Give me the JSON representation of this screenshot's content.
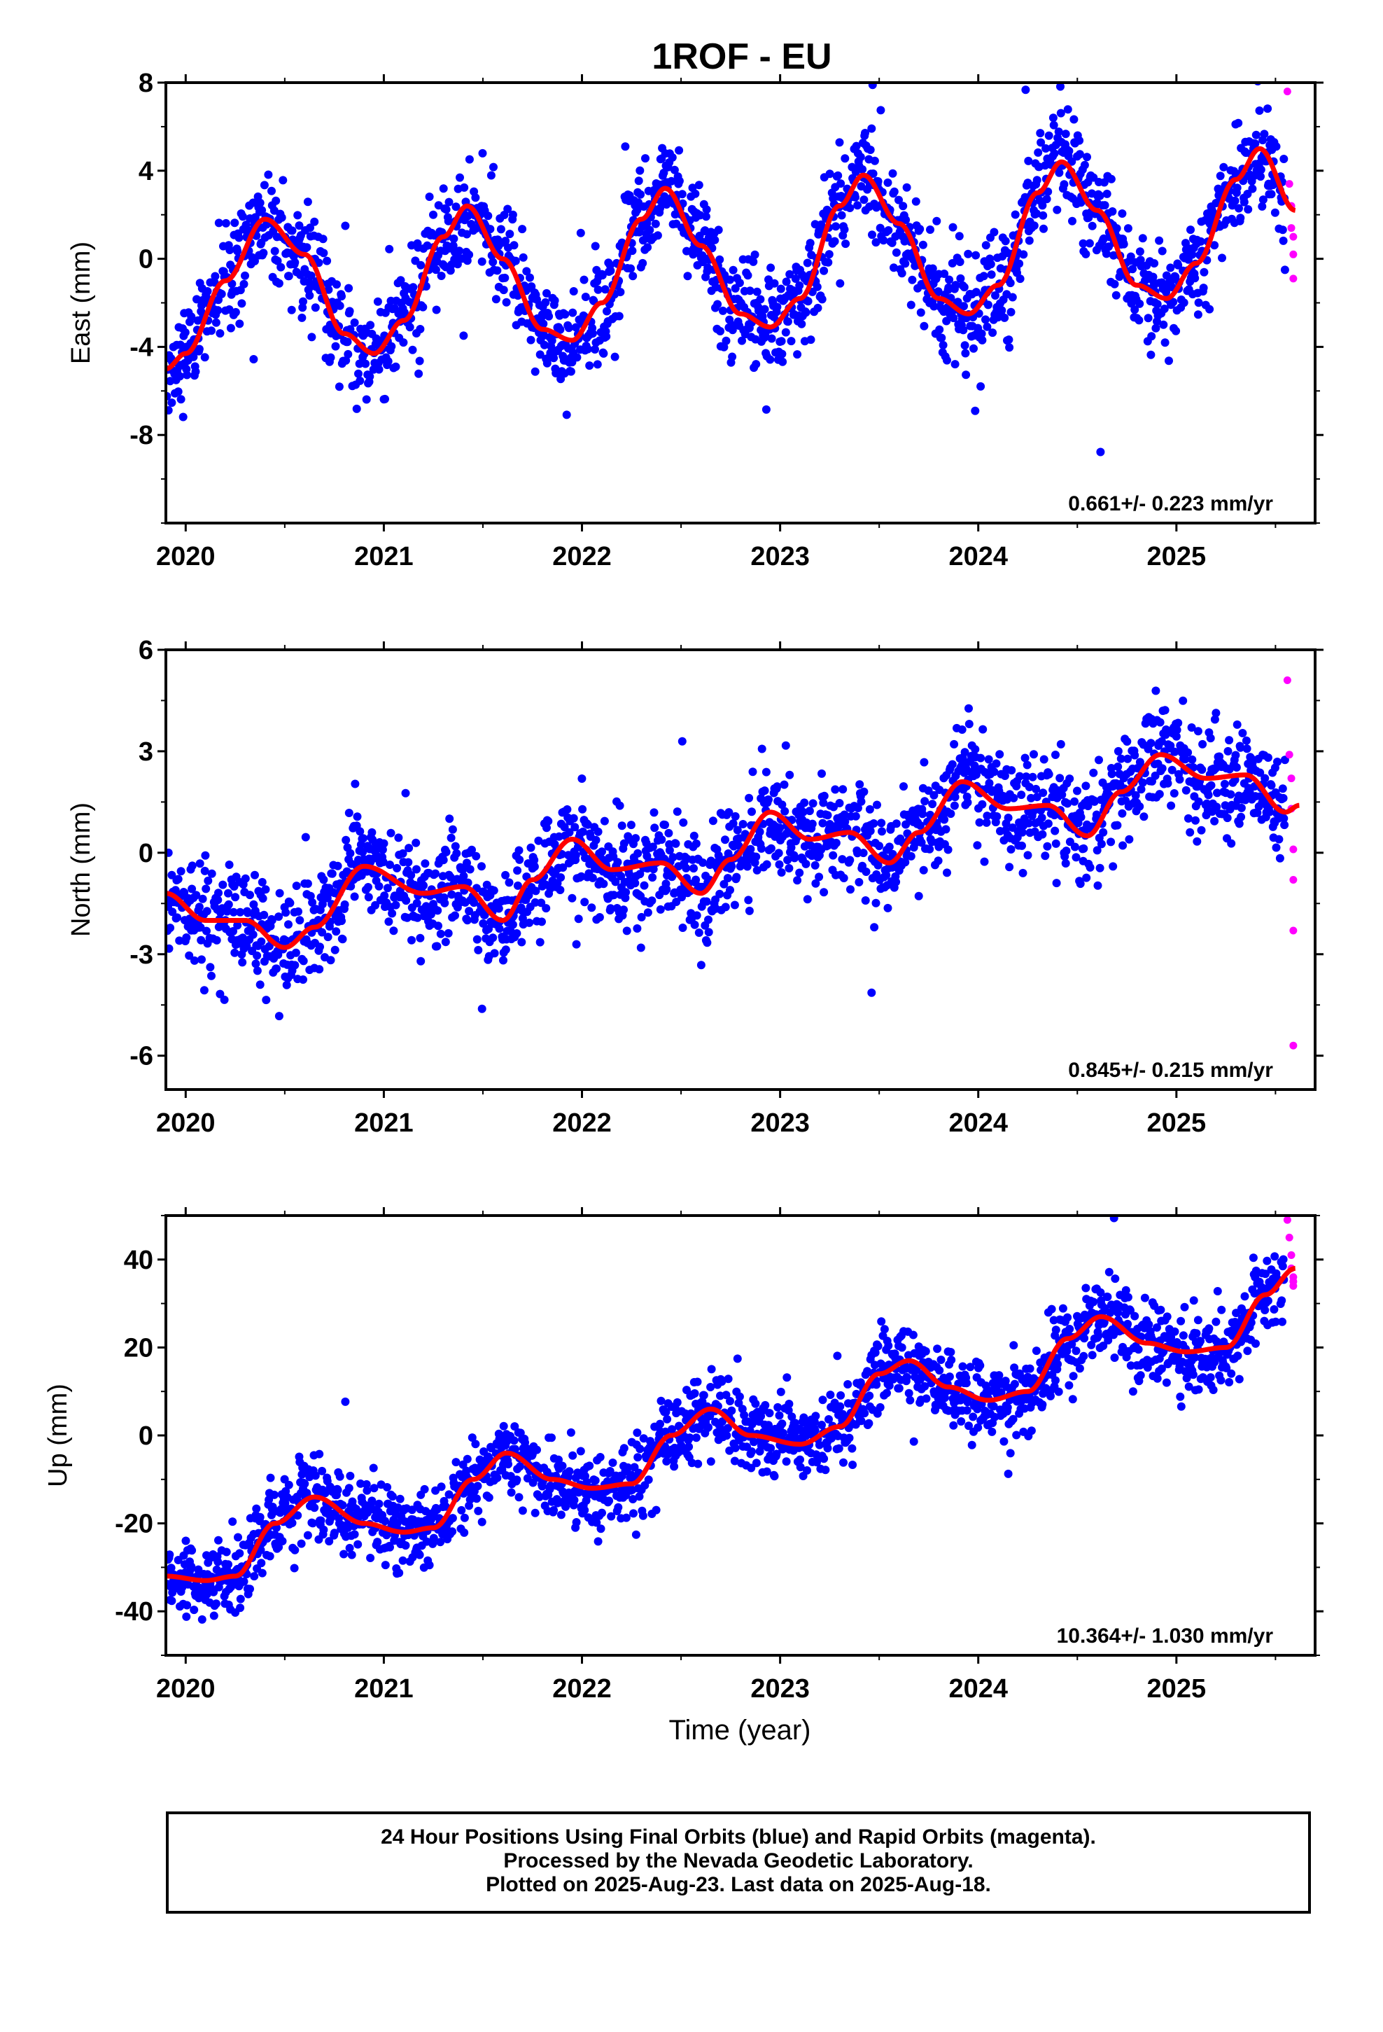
{
  "chart_data": {
    "type": "scatter",
    "title": "1ROF - EU",
    "x_label": "Time (year)",
    "x_ticks": [
      "2020",
      "2021",
      "2022",
      "2023",
      "2024",
      "2025"
    ],
    "x_range": [
      2019.9,
      2025.7
    ],
    "colors": {
      "final_orbits": "#0000ff",
      "rapid_orbits": "#ff00ff",
      "fit": "#ff0000"
    },
    "panels": [
      {
        "id": "east",
        "ylabel": "East (mm)",
        "ylim": [
          -12,
          8
        ],
        "yticks": [
          "8",
          "4",
          "0",
          "-4",
          "-8"
        ],
        "rate": "0.661+/- 0.223 mm/yr",
        "fit_points": [
          [
            2019.9,
            -5.0
          ],
          [
            2020.0,
            -4.3
          ],
          [
            2020.2,
            -1.0
          ],
          [
            2020.4,
            1.8
          ],
          [
            2020.6,
            0.2
          ],
          [
            2020.8,
            -3.4
          ],
          [
            2020.95,
            -4.3
          ],
          [
            2021.1,
            -2.8
          ],
          [
            2021.3,
            1.0
          ],
          [
            2021.42,
            2.4
          ],
          [
            2021.6,
            0.0
          ],
          [
            2021.8,
            -3.2
          ],
          [
            2021.95,
            -3.7
          ],
          [
            2022.1,
            -2.0
          ],
          [
            2022.3,
            1.8
          ],
          [
            2022.42,
            3.2
          ],
          [
            2022.6,
            0.6
          ],
          [
            2022.8,
            -2.5
          ],
          [
            2022.95,
            -3.1
          ],
          [
            2023.1,
            -1.8
          ],
          [
            2023.3,
            2.4
          ],
          [
            2023.42,
            3.8
          ],
          [
            2023.6,
            1.6
          ],
          [
            2023.8,
            -1.8
          ],
          [
            2023.95,
            -2.5
          ],
          [
            2024.1,
            -1.2
          ],
          [
            2024.3,
            3.0
          ],
          [
            2024.42,
            4.4
          ],
          [
            2024.6,
            2.2
          ],
          [
            2024.8,
            -1.2
          ],
          [
            2024.95,
            -1.8
          ],
          [
            2025.1,
            -0.2
          ],
          [
            2025.3,
            3.6
          ],
          [
            2025.42,
            5.0
          ],
          [
            2025.6,
            2.2
          ]
        ],
        "rapid_points": [
          [
            2025.56,
            7.6
          ],
          [
            2025.57,
            3.4
          ],
          [
            2025.58,
            2.4
          ],
          [
            2025.58,
            1.4
          ],
          [
            2025.59,
            1.0
          ],
          [
            2025.59,
            0.2
          ],
          [
            2025.59,
            -0.9
          ]
        ]
      },
      {
        "id": "north",
        "ylabel": "North (mm)",
        "ylim": [
          -7,
          6
        ],
        "yticks": [
          "6",
          "3",
          "0",
          "-3",
          "-6"
        ],
        "rate": "0.845+/- 0.215 mm/yr",
        "fit_points": [
          [
            2019.9,
            -1.2
          ],
          [
            2020.1,
            -2.0
          ],
          [
            2020.3,
            -2.0
          ],
          [
            2020.5,
            -2.8
          ],
          [
            2020.65,
            -2.2
          ],
          [
            2020.9,
            -0.4
          ],
          [
            2021.2,
            -1.2
          ],
          [
            2021.4,
            -1.0
          ],
          [
            2021.6,
            -2.0
          ],
          [
            2021.75,
            -0.8
          ],
          [
            2021.95,
            0.4
          ],
          [
            2022.15,
            -0.5
          ],
          [
            2022.4,
            -0.3
          ],
          [
            2022.6,
            -1.2
          ],
          [
            2022.75,
            -0.2
          ],
          [
            2022.95,
            1.2
          ],
          [
            2023.15,
            0.4
          ],
          [
            2023.35,
            0.6
          ],
          [
            2023.55,
            -0.3
          ],
          [
            2023.7,
            0.6
          ],
          [
            2023.92,
            2.1
          ],
          [
            2024.15,
            1.3
          ],
          [
            2024.35,
            1.4
          ],
          [
            2024.55,
            0.5
          ],
          [
            2024.72,
            1.8
          ],
          [
            2024.92,
            2.9
          ],
          [
            2025.15,
            2.2
          ],
          [
            2025.35,
            2.3
          ],
          [
            2025.55,
            1.2
          ],
          [
            2025.62,
            1.4
          ]
        ],
        "rapid_points": [
          [
            2025.56,
            5.1
          ],
          [
            2025.57,
            2.9
          ],
          [
            2025.58,
            2.2
          ],
          [
            2025.58,
            1.3
          ],
          [
            2025.59,
            0.1
          ],
          [
            2025.59,
            -0.8
          ],
          [
            2025.59,
            -2.3
          ],
          [
            2025.59,
            -5.7
          ]
        ]
      },
      {
        "id": "up",
        "ylabel": "Up (mm)",
        "ylim": [
          -50,
          50
        ],
        "yticks": [
          "40",
          "20",
          "0",
          "-20",
          "-40"
        ],
        "rate": "10.364+/- 1.030 mm/yr",
        "fit_points": [
          [
            2019.9,
            -32
          ],
          [
            2020.1,
            -33
          ],
          [
            2020.25,
            -32
          ],
          [
            2020.45,
            -20
          ],
          [
            2020.65,
            -14
          ],
          [
            2020.9,
            -20
          ],
          [
            2021.1,
            -22
          ],
          [
            2021.25,
            -21
          ],
          [
            2021.45,
            -10
          ],
          [
            2021.62,
            -4
          ],
          [
            2021.85,
            -10
          ],
          [
            2022.05,
            -12
          ],
          [
            2022.25,
            -11
          ],
          [
            2022.45,
            0
          ],
          [
            2022.65,
            6
          ],
          [
            2022.85,
            0
          ],
          [
            2023.1,
            -2
          ],
          [
            2023.3,
            2
          ],
          [
            2023.5,
            14
          ],
          [
            2023.65,
            17
          ],
          [
            2023.85,
            11
          ],
          [
            2024.05,
            8
          ],
          [
            2024.25,
            10
          ],
          [
            2024.45,
            22
          ],
          [
            2024.62,
            27
          ],
          [
            2024.85,
            21
          ],
          [
            2025.05,
            19
          ],
          [
            2025.25,
            20
          ],
          [
            2025.45,
            32
          ],
          [
            2025.6,
            38
          ]
        ],
        "rapid_points": [
          [
            2025.56,
            49
          ],
          [
            2025.57,
            45
          ],
          [
            2025.58,
            41
          ],
          [
            2025.58,
            38
          ],
          [
            2025.59,
            36
          ],
          [
            2025.59,
            35
          ],
          [
            2025.59,
            34
          ]
        ]
      }
    ]
  },
  "footer": {
    "line1": "24 Hour Positions Using Final Orbits (blue) and Rapid Orbits (magenta).",
    "line2": "Processed by the Nevada Geodetic Laboratory.",
    "line3": "Plotted on 2025-Aug-23. Last data on 2025-Aug-18."
  }
}
